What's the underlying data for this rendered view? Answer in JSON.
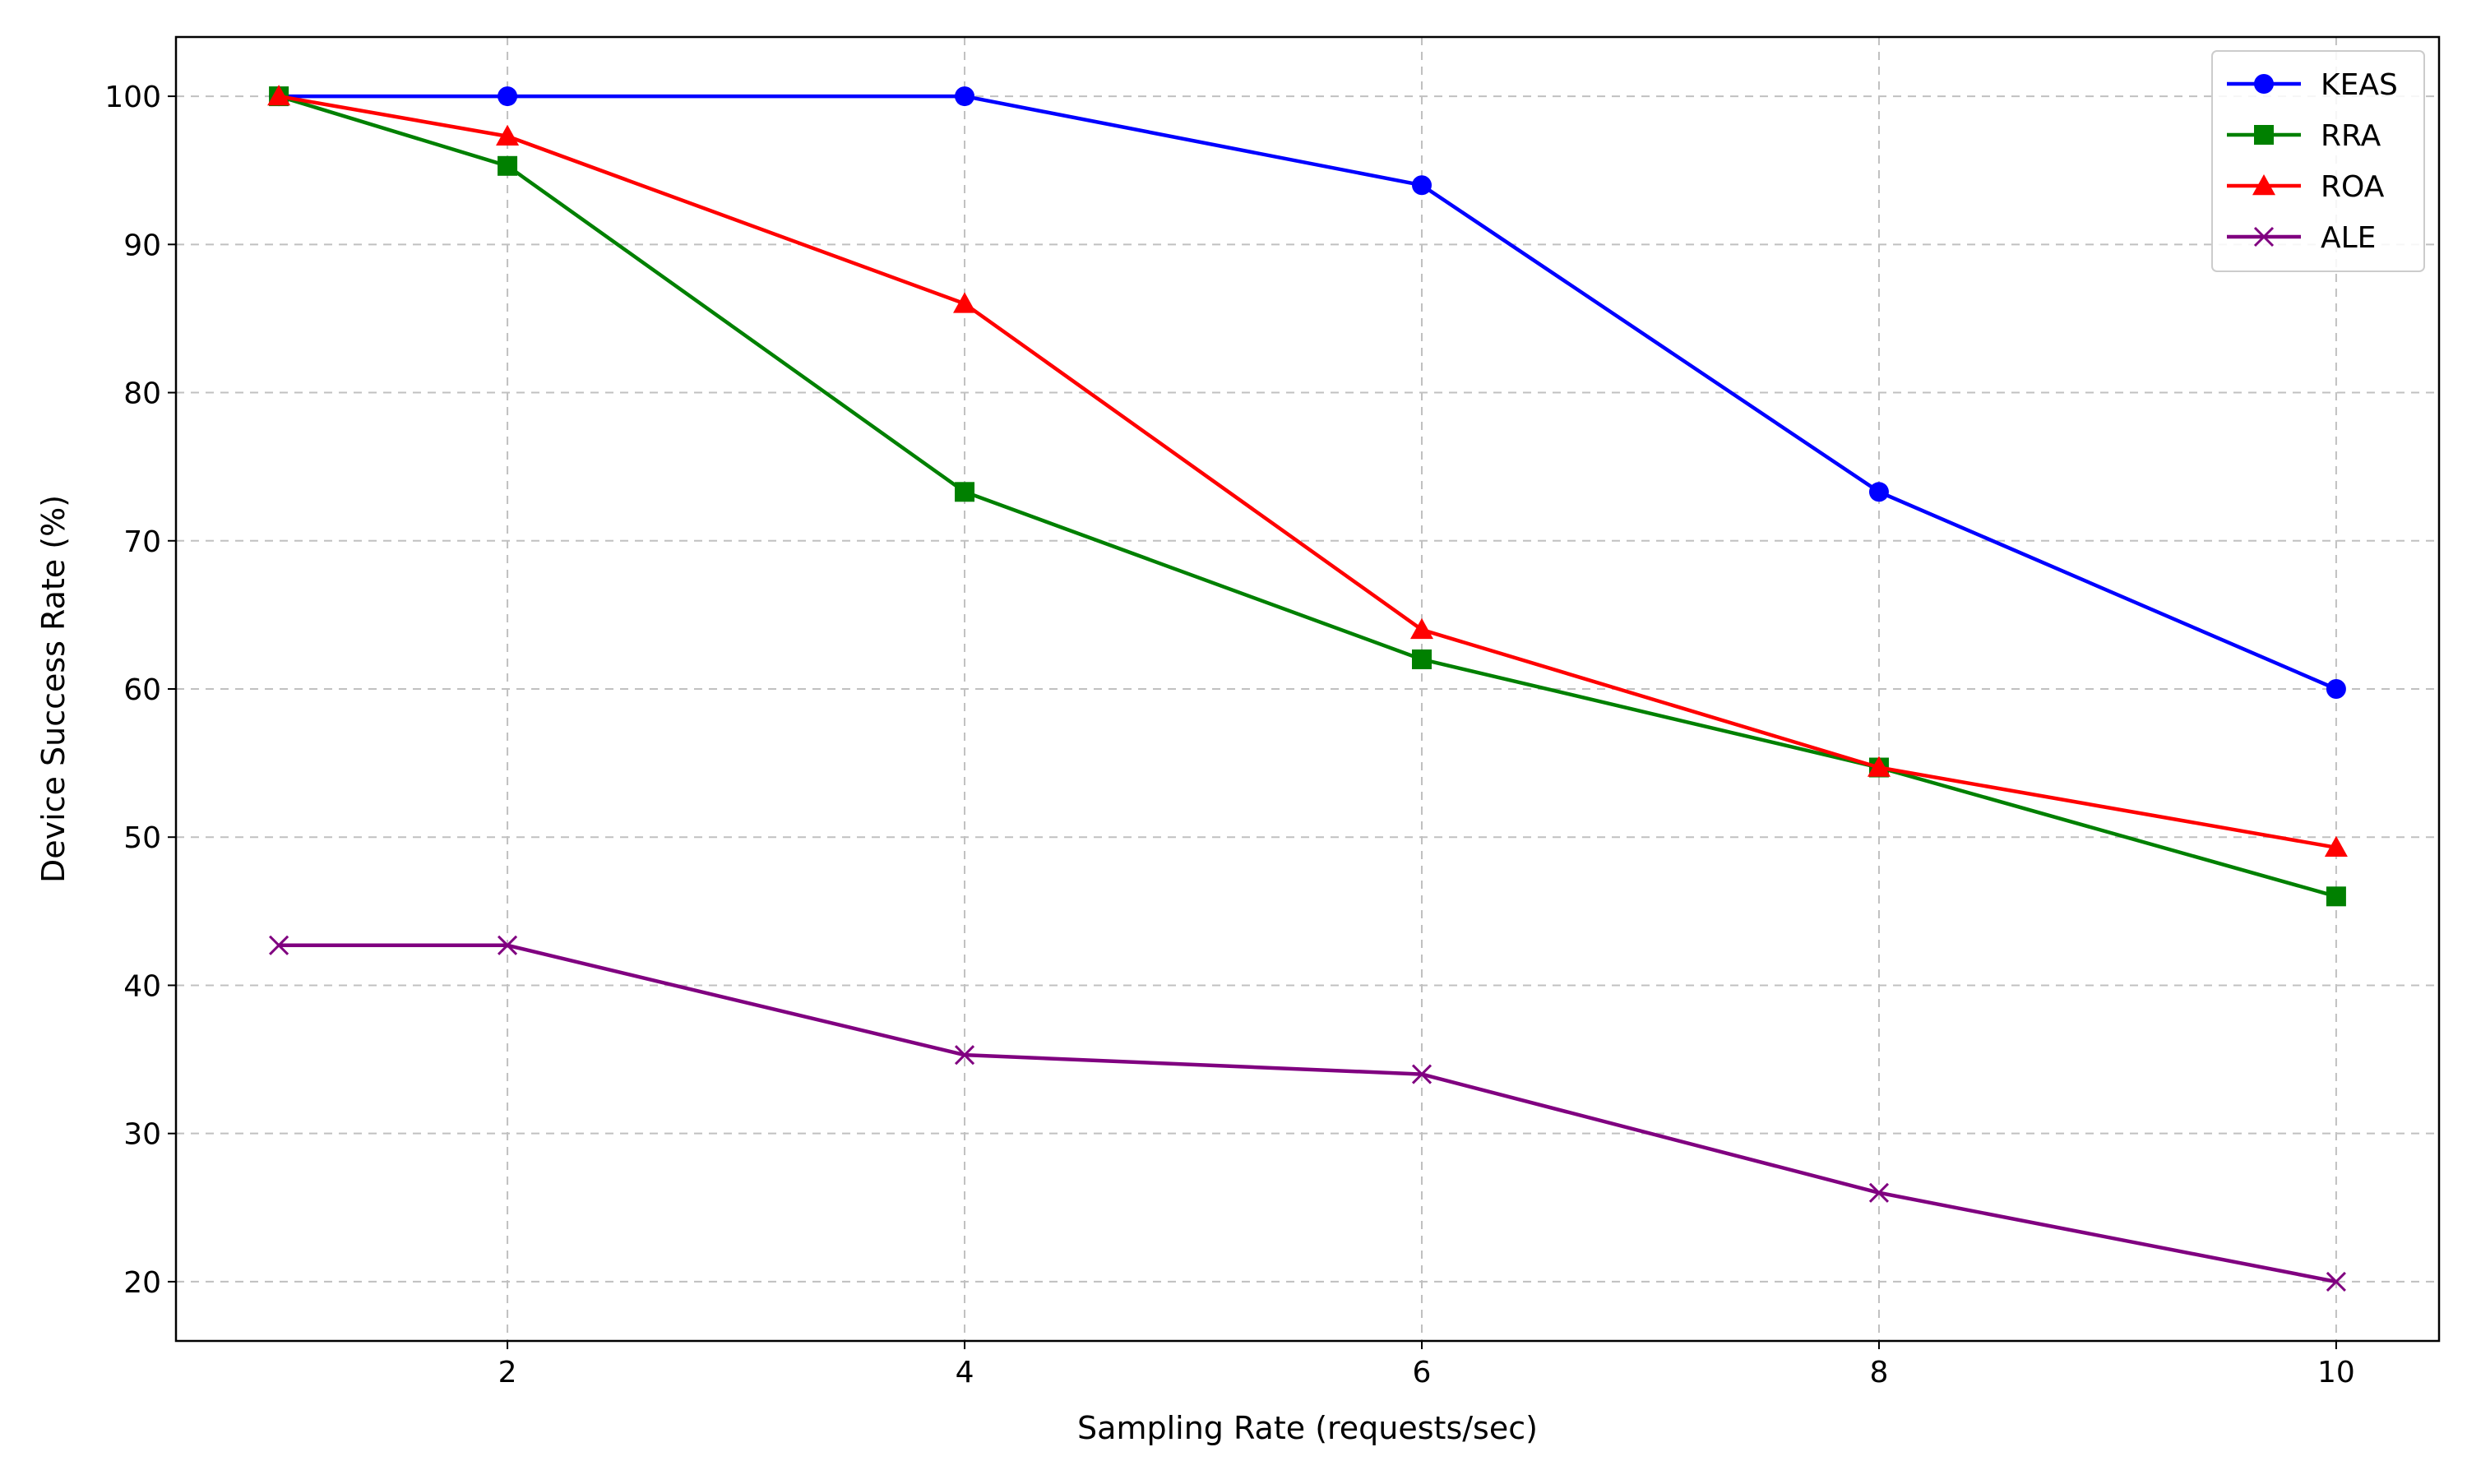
{
  "chart_data": {
    "type": "line",
    "title": "",
    "xlabel": "Sampling Rate (requests/sec)",
    "ylabel": "Device Success Rate (%)",
    "xlim": [
      0.55,
      10.45
    ],
    "ylim": [
      16,
      104
    ],
    "xticks": [
      2,
      4,
      6,
      8,
      10
    ],
    "yticks": [
      20,
      30,
      40,
      50,
      60,
      70,
      80,
      90,
      100
    ],
    "grid": true,
    "legend_position": "top-right",
    "x": [
      1,
      2,
      4,
      6,
      8,
      10
    ],
    "series": [
      {
        "name": "KEAS",
        "color": "#0000ff",
        "marker": "circle",
        "values": [
          100,
          100,
          100,
          94,
          73.3,
          60
        ]
      },
      {
        "name": "RRA",
        "color": "#008000",
        "marker": "square",
        "values": [
          100,
          95.3,
          73.3,
          62,
          54.7,
          46
        ]
      },
      {
        "name": "ROA",
        "color": "#ff0000",
        "marker": "triangle",
        "values": [
          100,
          97.3,
          86,
          64,
          54.7,
          49.3
        ]
      },
      {
        "name": "ALE",
        "color": "#800080",
        "marker": "x",
        "values": [
          42.7,
          42.7,
          35.3,
          34,
          26,
          20
        ]
      }
    ]
  }
}
